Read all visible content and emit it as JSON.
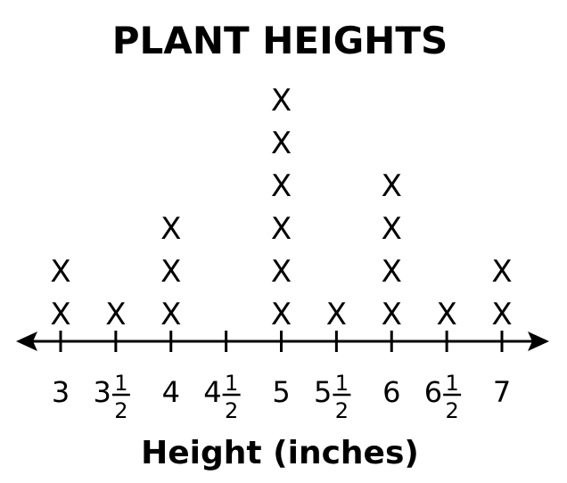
{
  "chart_data": {
    "type": "dot-plot",
    "title": "PLANT HEIGHTS",
    "xlabel": "Height (inches)",
    "ylabel": "",
    "marker": "X",
    "xlim": [
      3,
      7
    ],
    "ticks": [
      {
        "value": 3,
        "whole": "3",
        "num": "",
        "den": ""
      },
      {
        "value": 3.5,
        "whole": "3",
        "num": "1",
        "den": "2"
      },
      {
        "value": 4,
        "whole": "4",
        "num": "",
        "den": ""
      },
      {
        "value": 4.5,
        "whole": "4",
        "num": "1",
        "den": "2"
      },
      {
        "value": 5,
        "whole": "5",
        "num": "",
        "den": ""
      },
      {
        "value": 5.5,
        "whole": "5",
        "num": "1",
        "den": "2"
      },
      {
        "value": 6,
        "whole": "6",
        "num": "",
        "den": ""
      },
      {
        "value": 6.5,
        "whole": "6",
        "num": "1",
        "den": "2"
      },
      {
        "value": 7,
        "whole": "7",
        "num": "",
        "den": ""
      }
    ],
    "points": [
      {
        "x": 3,
        "count": 2
      },
      {
        "x": 3.5,
        "count": 1
      },
      {
        "x": 4,
        "count": 3
      },
      {
        "x": 4.5,
        "count": 0
      },
      {
        "x": 5,
        "count": 6
      },
      {
        "x": 5.5,
        "count": 1
      },
      {
        "x": 6,
        "count": 4
      },
      {
        "x": 6.5,
        "count": 1
      },
      {
        "x": 7,
        "count": 2
      }
    ]
  }
}
